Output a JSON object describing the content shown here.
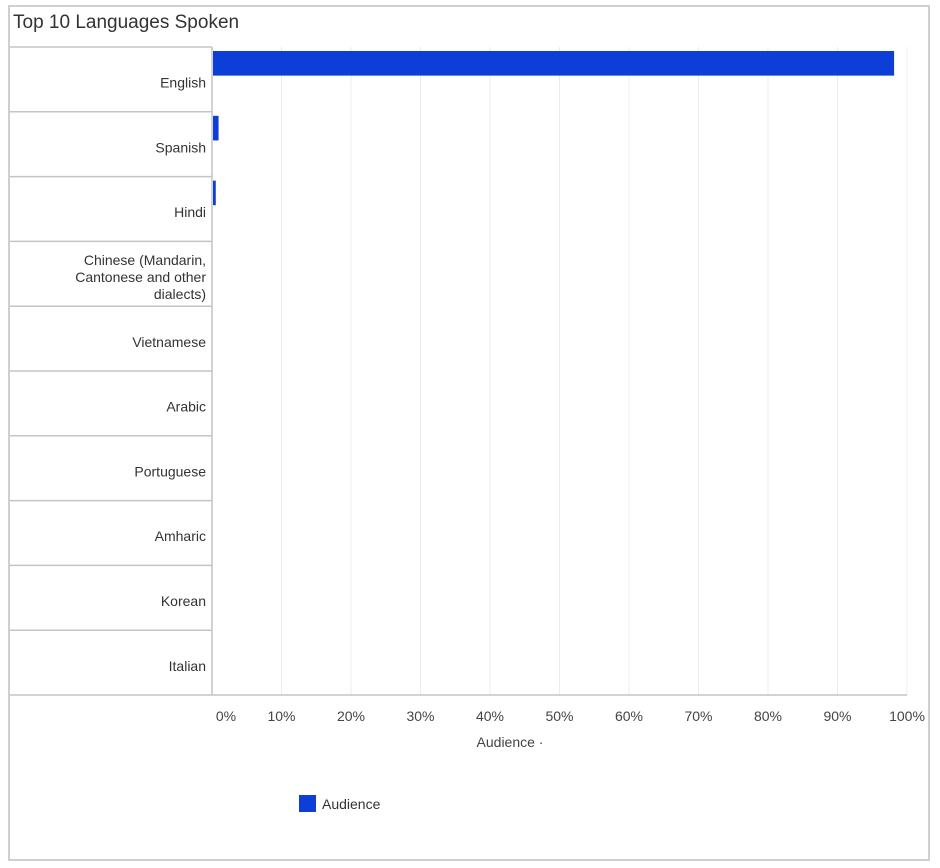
{
  "chart_data": {
    "type": "bar",
    "orientation": "horizontal",
    "title": "Top 10 Languages Spoken",
    "categories": [
      "English",
      "Spanish",
      "Hindi",
      "Chinese (Mandarin, Cantonese and other dialects)",
      "Vietnamese",
      "Arabic",
      "Portuguese",
      "Amharic",
      "Korean",
      "Italian"
    ],
    "series": [
      {
        "name": "Audience",
        "values": [
          98,
          0.8,
          0.4,
          0,
          0,
          0,
          0,
          0,
          0,
          0
        ],
        "color": "#0d3fd8"
      }
    ],
    "xlabel": "Audience ·",
    "ylabel": "",
    "xlim": [
      0,
      100
    ],
    "x_ticks": [
      "0%",
      "10%",
      "20%",
      "30%",
      "40%",
      "50%",
      "60%",
      "70%",
      "80%",
      "90%",
      "100%"
    ],
    "grid": true,
    "legend_position": "bottom"
  }
}
